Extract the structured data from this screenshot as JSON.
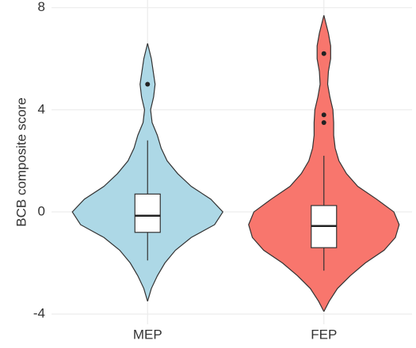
{
  "chart_data": {
    "type": "violin",
    "y_label": "BCB composite score",
    "categories": [
      "MEP",
      "FEP"
    ],
    "ylim": [
      -4.4,
      8.3
    ],
    "yticks": [
      -4,
      0,
      4,
      8
    ],
    "grid": true,
    "groups": [
      {
        "color": "#add8e6",
        "violin_y": [
          6.6,
          6.0,
          5.0,
          4.5,
          4.0,
          3.5,
          3.0,
          2.5,
          2.0,
          1.5,
          1.0,
          0.5,
          0,
          -0.5,
          -1.0,
          -1.5,
          -2.0,
          -2.5,
          -3.0,
          -3.5
        ],
        "violin_density": [
          0,
          0.05,
          0.1,
          0.08,
          0.04,
          0.06,
          0.13,
          0.18,
          0.26,
          0.4,
          0.58,
          0.84,
          1,
          0.89,
          0.58,
          0.37,
          0.23,
          0.13,
          0.05,
          0
        ],
        "whisker_low": -1.9,
        "q1": -0.8,
        "median": -0.15,
        "q3": 0.7,
        "whisker_high": 2.8,
        "outliers": [
          5.0
        ]
      },
      {
        "color": "#f8766d",
        "violin_y": [
          7.7,
          7.0,
          6.5,
          6.0,
          5.5,
          5.0,
          4.5,
          4.0,
          3.5,
          3.0,
          2.5,
          2.0,
          1.5,
          1.0,
          0.5,
          0,
          -0.5,
          -1.0,
          -1.5,
          -2.0,
          -2.5,
          -3.0,
          -3.5,
          -3.9
        ],
        "violin_density": [
          0,
          0.06,
          0.09,
          0.09,
          0.06,
          0.05,
          0.08,
          0.12,
          0.13,
          0.13,
          0.15,
          0.2,
          0.3,
          0.45,
          0.7,
          0.93,
          1,
          0.95,
          0.8,
          0.55,
          0.35,
          0.18,
          0.07,
          0
        ],
        "whisker_low": -2.3,
        "q1": -1.4,
        "median": -0.55,
        "q3": 0.25,
        "whisker_high": 2.2,
        "outliers": [
          6.2,
          3.8,
          3.5
        ]
      }
    ]
  }
}
